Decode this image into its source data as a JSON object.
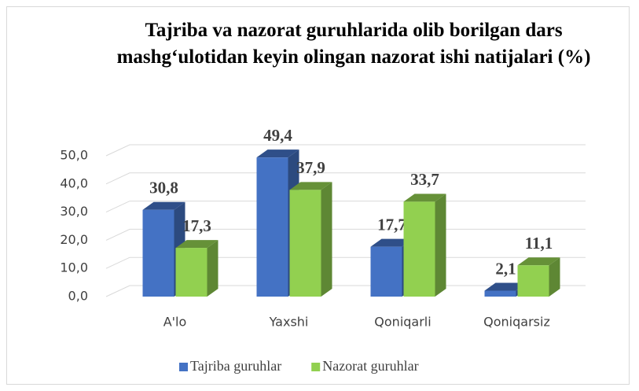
{
  "chart_data": {
    "type": "bar3d",
    "title": "Tajriba va nazorat guruhlarida olib borilgan dars mashg‘ulotidan keyin olingan nazorat ishi natijalari (%)",
    "categories": [
      "A'lo",
      "Yaxshi",
      "Qoniqarli",
      "Qoniqarsiz"
    ],
    "series": [
      {
        "name": "Tajriba guruhlar",
        "color": "#4472c4",
        "values": [
          30.8,
          49.4,
          17.7,
          2.1
        ],
        "value_labels": [
          "30,8",
          "49,4",
          "17,7",
          "2,1"
        ]
      },
      {
        "name": "Nazorat guruhlar",
        "color": "#92d050",
        "values": [
          17.3,
          37.9,
          33.7,
          11.1
        ],
        "value_labels": [
          "17,3",
          "37,9",
          "33,7",
          "11,1"
        ]
      }
    ],
    "ylim": [
      0,
      50
    ],
    "yticks": [
      {
        "value": 0,
        "label": "0,0"
      },
      {
        "value": 10,
        "label": "10,0"
      },
      {
        "value": 20,
        "label": "20,0"
      },
      {
        "value": 30,
        "label": "30,0"
      },
      {
        "value": 40,
        "label": "40,0"
      },
      {
        "value": 50,
        "label": "50,0"
      }
    ],
    "grid": true,
    "legend": "bottom"
  }
}
